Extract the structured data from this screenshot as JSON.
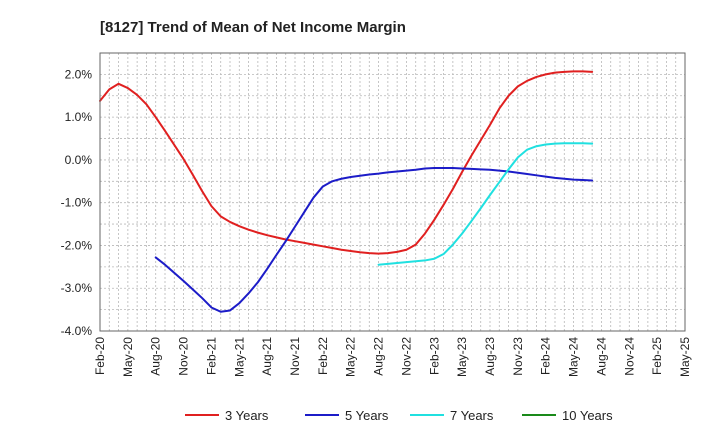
{
  "chart_data": {
    "type": "line",
    "title": "[8127]  Trend of Mean of Net Income Margin",
    "xlabel": "",
    "ylabel": "",
    "ylim": [
      -4.0,
      2.5
    ],
    "y_ticks": [
      2.0,
      1.0,
      0.0,
      -1.0,
      -2.0,
      -3.0,
      -4.0
    ],
    "y_tick_labels": [
      "2.0%",
      "1.0%",
      "0.0%",
      "-1.0%",
      "-2.0%",
      "-3.0%",
      "-4.0%"
    ],
    "x_tick_labels": [
      "Feb-20",
      "May-20",
      "Aug-20",
      "Nov-20",
      "Feb-21",
      "May-21",
      "Aug-21",
      "Nov-21",
      "Feb-22",
      "May-22",
      "Aug-22",
      "Nov-22",
      "Feb-23",
      "May-23",
      "Aug-23",
      "Nov-23",
      "Feb-24",
      "May-24",
      "Aug-24",
      "Nov-24",
      "Feb-25",
      "May-25"
    ],
    "x_range_months": [
      0,
      63
    ],
    "grid": true,
    "legend_position": "bottom",
    "series": [
      {
        "name": "3 Years",
        "color": "#e02020",
        "points": [
          [
            0,
            1.38
          ],
          [
            1,
            1.65
          ],
          [
            2,
            1.78
          ],
          [
            3,
            1.68
          ],
          [
            4,
            1.52
          ],
          [
            5,
            1.3
          ],
          [
            6,
            1.0
          ],
          [
            7,
            0.68
          ],
          [
            8,
            0.35
          ],
          [
            9,
            0.02
          ],
          [
            10,
            -0.35
          ],
          [
            11,
            -0.73
          ],
          [
            12,
            -1.08
          ],
          [
            13,
            -1.32
          ],
          [
            14,
            -1.45
          ],
          [
            15,
            -1.55
          ],
          [
            16,
            -1.63
          ],
          [
            17,
            -1.7
          ],
          [
            18,
            -1.76
          ],
          [
            19,
            -1.81
          ],
          [
            20,
            -1.86
          ],
          [
            21,
            -1.9
          ],
          [
            22,
            -1.94
          ],
          [
            23,
            -1.98
          ],
          [
            24,
            -2.02
          ],
          [
            25,
            -2.06
          ],
          [
            26,
            -2.1
          ],
          [
            27,
            -2.13
          ],
          [
            28,
            -2.16
          ],
          [
            29,
            -2.18
          ],
          [
            30,
            -2.19
          ],
          [
            31,
            -2.18
          ],
          [
            32,
            -2.15
          ],
          [
            33,
            -2.1
          ],
          [
            34,
            -1.98
          ],
          [
            35,
            -1.72
          ],
          [
            36,
            -1.4
          ],
          [
            37,
            -1.05
          ],
          [
            38,
            -0.68
          ],
          [
            39,
            -0.28
          ],
          [
            40,
            0.1
          ],
          [
            41,
            0.46
          ],
          [
            42,
            0.82
          ],
          [
            43,
            1.2
          ],
          [
            44,
            1.5
          ],
          [
            45,
            1.72
          ],
          [
            46,
            1.85
          ],
          [
            47,
            1.94
          ],
          [
            48,
            2.0
          ],
          [
            49,
            2.04
          ],
          [
            50,
            2.06
          ],
          [
            51,
            2.07
          ],
          [
            52,
            2.07
          ],
          [
            53,
            2.06
          ]
        ]
      },
      {
        "name": "5 Years",
        "color": "#1c1cc8",
        "points": [
          [
            6,
            -2.28
          ],
          [
            7,
            -2.45
          ],
          [
            8,
            -2.64
          ],
          [
            9,
            -2.83
          ],
          [
            10,
            -3.03
          ],
          [
            11,
            -3.23
          ],
          [
            12,
            -3.45
          ],
          [
            13,
            -3.55
          ],
          [
            14,
            -3.52
          ],
          [
            15,
            -3.35
          ],
          [
            16,
            -3.12
          ],
          [
            17,
            -2.86
          ],
          [
            18,
            -2.55
          ],
          [
            19,
            -2.22
          ],
          [
            20,
            -1.9
          ],
          [
            21,
            -1.56
          ],
          [
            22,
            -1.22
          ],
          [
            23,
            -0.88
          ],
          [
            24,
            -0.62
          ],
          [
            25,
            -0.5
          ],
          [
            26,
            -0.44
          ],
          [
            27,
            -0.4
          ],
          [
            28,
            -0.37
          ],
          [
            29,
            -0.34
          ],
          [
            30,
            -0.32
          ],
          [
            31,
            -0.29
          ],
          [
            32,
            -0.27
          ],
          [
            33,
            -0.25
          ],
          [
            34,
            -0.23
          ],
          [
            35,
            -0.2
          ],
          [
            36,
            -0.19
          ],
          [
            37,
            -0.19
          ],
          [
            38,
            -0.19
          ],
          [
            39,
            -0.2
          ],
          [
            40,
            -0.21
          ],
          [
            41,
            -0.22
          ],
          [
            42,
            -0.23
          ],
          [
            43,
            -0.25
          ],
          [
            44,
            -0.27
          ],
          [
            45,
            -0.3
          ],
          [
            46,
            -0.33
          ],
          [
            47,
            -0.36
          ],
          [
            48,
            -0.39
          ],
          [
            49,
            -0.42
          ],
          [
            50,
            -0.44
          ],
          [
            51,
            -0.46
          ],
          [
            52,
            -0.47
          ],
          [
            53,
            -0.48
          ]
        ]
      },
      {
        "name": "7 Years",
        "color": "#20e0e0",
        "points": [
          [
            30,
            -2.45
          ],
          [
            31,
            -2.43
          ],
          [
            32,
            -2.41
          ],
          [
            33,
            -2.39
          ],
          [
            34,
            -2.37
          ],
          [
            35,
            -2.35
          ],
          [
            36,
            -2.31
          ],
          [
            37,
            -2.2
          ],
          [
            38,
            -1.98
          ],
          [
            39,
            -1.72
          ],
          [
            40,
            -1.43
          ],
          [
            41,
            -1.13
          ],
          [
            42,
            -0.82
          ],
          [
            43,
            -0.52
          ],
          [
            44,
            -0.22
          ],
          [
            45,
            0.06
          ],
          [
            46,
            0.24
          ],
          [
            47,
            0.32
          ],
          [
            48,
            0.36
          ],
          [
            49,
            0.38
          ],
          [
            50,
            0.39
          ],
          [
            51,
            0.39
          ],
          [
            52,
            0.39
          ],
          [
            53,
            0.38
          ]
        ]
      },
      {
        "name": "10 Years",
        "color": "#1a8a1a",
        "points": []
      }
    ]
  }
}
